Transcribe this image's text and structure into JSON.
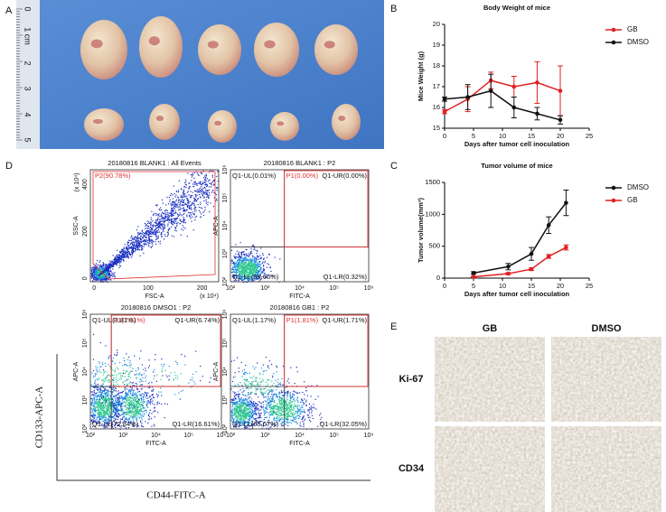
{
  "panel_labels": [
    "A",
    "B",
    "C",
    "D",
    "E"
  ],
  "ruler": [
    "0",
    "1 cm",
    "2",
    "3",
    "4",
    "5"
  ],
  "chart_data": [
    {
      "type": "line",
      "title": "Body Weight of mice",
      "xlabel": "Days after tumor cell inoculation",
      "ylabel": "Mice Weight (g)",
      "x": [
        0,
        4,
        8,
        12,
        16,
        20
      ],
      "xlim": [
        0,
        25
      ],
      "xticks": [
        0,
        5,
        10,
        15,
        20,
        25
      ],
      "ylim": [
        15,
        20
      ],
      "yticks": [
        15,
        16,
        17,
        18,
        19,
        20
      ],
      "legend": "right",
      "series": [
        {
          "name": "GB",
          "color": "#e02020",
          "values": [
            15.8,
            16.4,
            17.3,
            17.0,
            17.2,
            16.8
          ],
          "errors": [
            0.1,
            0.6,
            0.4,
            0.5,
            1.0,
            1.2
          ]
        },
        {
          "name": "DMSO",
          "color": "#111111",
          "values": [
            16.4,
            16.5,
            16.8,
            16.0,
            15.7,
            15.4
          ],
          "errors": [
            0.1,
            0.6,
            0.8,
            0.5,
            0.3,
            0.2
          ]
        }
      ]
    },
    {
      "type": "line",
      "title": "Tumor volume of mice",
      "xlabel": "Days after tumor cell inoculation",
      "ylabel": "Tumor volume(mm³)",
      "x": [
        5,
        11,
        15,
        18,
        21
      ],
      "xlim": [
        0,
        25
      ],
      "xticks": [
        0,
        5,
        10,
        15,
        20,
        25
      ],
      "ylim": [
        0,
        1500
      ],
      "yticks": [
        0,
        500,
        1000,
        1500
      ],
      "legend": "right",
      "series": [
        {
          "name": "DMSO",
          "color": "#111111",
          "values": [
            80,
            180,
            380,
            830,
            1180
          ],
          "errors": [
            20,
            50,
            100,
            130,
            200
          ]
        },
        {
          "name": "GB",
          "color": "#e02020",
          "values": [
            20,
            70,
            140,
            340,
            480
          ],
          "errors": [
            5,
            15,
            20,
            30,
            40
          ]
        }
      ]
    }
  ],
  "flow": [
    {
      "title": "20180816 BLANK1 : All Events",
      "x_label": "FSC-A",
      "y_label": "SSC-A",
      "xticks": [
        "0",
        "100",
        "200"
      ],
      "yticks": [
        "0",
        "200",
        "400"
      ],
      "x_unit": "(x 10⁴)",
      "y_unit": "(x 10⁴)",
      "gate": "P2(90.78%)"
    },
    {
      "title": "20180816 BLANK1 : P2",
      "x_label": "FITC-A",
      "y_label": "APC-A",
      "xticks": [
        "10²",
        "10³",
        "10⁴",
        "10⁵",
        "10⁶"
      ],
      "yticks": [
        "10²",
        "10³",
        "10⁴",
        "10⁵",
        "10⁶"
      ],
      "gate": "P1(0.00%)",
      "quadrants": [
        "Q1-UL(0.01%)",
        "Q1-UR(0.00%)",
        "Q1-LL(99.66%)",
        "Q1-LR(0.32%)"
      ]
    },
    {
      "title": "20180816 DMSO1 : P2",
      "x_label": "FITC-A",
      "y_label": "APC-A",
      "xticks": [
        "10²",
        "10³",
        "10⁴",
        "10⁵",
        "10⁶"
      ],
      "yticks": [
        "10²",
        "10³",
        "10⁴",
        "10⁵",
        "10⁶"
      ],
      "gate": "P1(7.01%)",
      "quadrants": [
        "Q1-UL(3.81%)",
        "Q1-UR(6.74%)",
        "Q1-LL(72.84%)",
        "Q1-LR(16.61%)"
      ]
    },
    {
      "title": "20180816 GB1 : P2",
      "x_label": "FITC-A",
      "y_label": "APC-A",
      "xticks": [
        "10²",
        "10³",
        "10⁴",
        "10⁵",
        "10⁶"
      ],
      "yticks": [
        "10²",
        "10³",
        "10⁴",
        "10⁵",
        "10⁶"
      ],
      "gate": "P1(1.81%)",
      "quadrants": [
        "Q1-UL(1.17%)",
        "Q1-UR(1.71%)",
        "Q1-LL(65.07%)",
        "Q1-LR(32.05%)"
      ]
    }
  ],
  "flow_axes": {
    "y": "CD133-APC-A",
    "x": "CD44-FITC-A"
  },
  "ihc": {
    "columns": [
      "GB",
      "DMSO"
    ],
    "rows": [
      "Ki-67",
      "CD34"
    ]
  }
}
